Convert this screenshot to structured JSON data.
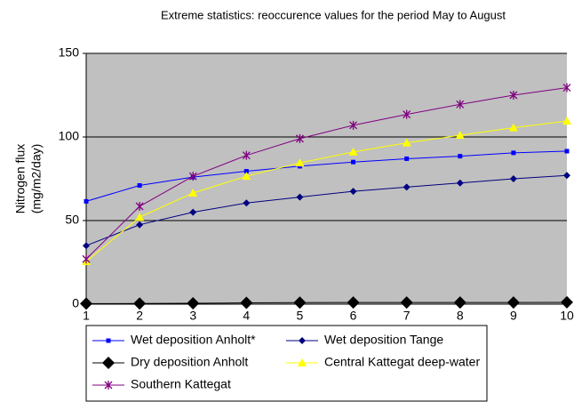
{
  "chart_data": {
    "type": "line",
    "title": "Extreme statistics: reoccurence values for the period May to August",
    "ylabel": [
      "Nitrogen flux",
      "(mg/m2/day)"
    ],
    "x": [
      1,
      2,
      3,
      4,
      5,
      6,
      7,
      8,
      9,
      10
    ],
    "xlim": [
      1,
      10
    ],
    "xticks": [
      1,
      2,
      3,
      4,
      5,
      6,
      7,
      8,
      9,
      10
    ],
    "ylim": [
      0,
      150
    ],
    "yticks": [
      0,
      50,
      100,
      150
    ],
    "grid": true,
    "legend": "bottom",
    "series": [
      {
        "name": "Wet deposition Anholt*",
        "color": "#0000ff",
        "marker": "square",
        "values": [
          61.5,
          71,
          76,
          79.5,
          82.5,
          85,
          87,
          88.5,
          90.5,
          91.5
        ]
      },
      {
        "name": "Wet deposition Tange",
        "color": "#000080",
        "marker": "diamond",
        "values": [
          35,
          47.5,
          55,
          60.5,
          64,
          67.5,
          70,
          72.5,
          75,
          77
        ]
      },
      {
        "name": "Dry deposition Anholt",
        "color": "#000000",
        "marker": "big-diamond",
        "values": [
          0.3,
          0.4,
          0.5,
          0.8,
          0.9,
          1,
          1,
          1,
          1,
          1.1
        ]
      },
      {
        "name": "Central Kattegat deep-water",
        "color": "#ffff00",
        "marker": "triangle",
        "values": [
          25.5,
          52,
          66.5,
          76.5,
          84.5,
          91,
          96.5,
          101,
          105.5,
          109.5
        ]
      },
      {
        "name": "Southern Kattegat",
        "color": "#800080",
        "marker": "star",
        "values": [
          27,
          58.5,
          76.5,
          89,
          99,
          107,
          113.5,
          119.5,
          125,
          129.5
        ]
      }
    ]
  }
}
